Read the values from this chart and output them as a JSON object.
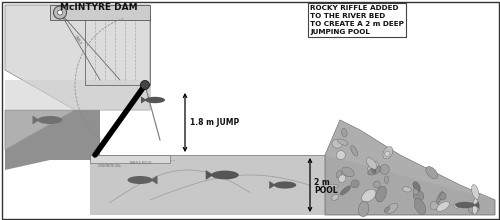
{
  "title": "McINTYRE DAM",
  "label_jump": "1.8 m JUMP",
  "label_pool_depth": "2 m",
  "label_pool": "POOL",
  "label_rocky": "ROCKY RIFFLE ADDED\nTO THE RIVER BED\nTO CREATE A 2 m DEEP\nJUMPING POOL",
  "bg_color": "#ffffff",
  "border_color": "#555555",
  "dam_light": "#e0e0e0",
  "dam_dark": "#999999",
  "dam_mid": "#c8c8c8",
  "pool_color": "#c0c0c0",
  "rocky_base": "#a0a0a0",
  "text_color": "#111111",
  "arrow_color": "#000000"
}
